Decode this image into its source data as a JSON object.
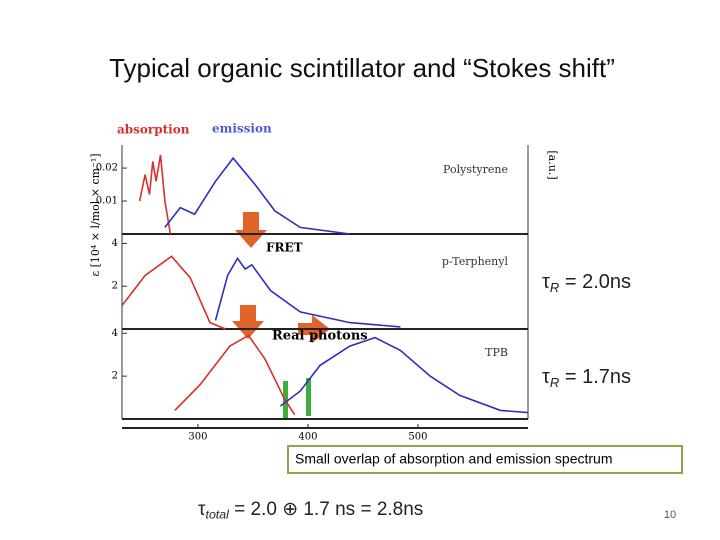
{
  "header": {
    "title": "Typical organic scintillator and “Stokes shift”"
  },
  "chart_data": {
    "type": "line",
    "legend": [
      "absorption",
      "emission"
    ],
    "y_label": "ε [10⁴ × l/mol × cm⁻¹]",
    "y2_label": "[a.u.]",
    "xlim": [
      231,
      600
    ],
    "xticks": [
      300,
      400,
      500
    ],
    "panels": [
      {
        "label": "Polystyrene",
        "ylim": [
          0,
          0.027
        ],
        "yticks": [
          0.02,
          0.01
        ],
        "series": [
          {
            "name": "absorption",
            "color": "#d8302a",
            "x": [
              247,
              252,
              256,
              259,
              262,
              266,
              270,
              275
            ],
            "values": [
              0.01,
              0.018,
              0.012,
              0.022,
              0.016,
              0.024,
              0.01,
              0.0
            ]
          },
          {
            "name": "emission",
            "color": "#2c2fc0",
            "x": [
              270,
              284,
              297,
              316,
              332,
              352,
              370,
              393,
              438
            ],
            "values": [
              0.002,
              0.008,
              0.006,
              0.016,
              0.023,
              0.015,
              0.007,
              0.002,
              0.0
            ]
          }
        ]
      },
      {
        "label": "p-Terphenyl",
        "ylim": [
          0,
          4.3
        ],
        "yticks": [
          4,
          2
        ],
        "series": [
          {
            "name": "absorption",
            "color": "#d8302a",
            "x": [
              231,
              252,
              276,
              293,
              311,
              325
            ],
            "values": [
              1.1,
              2.5,
              3.4,
              2.4,
              0.3,
              0.0
            ]
          },
          {
            "name": "emission",
            "color": "#2c2fc0",
            "x": [
              316,
              327,
              336,
              343,
              349,
              366,
              393,
              438,
              484
            ],
            "values": [
              0.4,
              2.5,
              3.3,
              2.8,
              3.0,
              1.8,
              0.8,
              0.3,
              0.1
            ]
          }
        ]
      },
      {
        "label": "TPB",
        "ylim": [
          0,
          4.2
        ],
        "yticks": [
          4,
          2
        ],
        "series": [
          {
            "name": "absorption",
            "color": "#d8302a",
            "x": [
              279,
              302,
              329,
              346,
              361,
              379,
              388
            ],
            "values": [
              0.4,
              1.6,
              3.4,
              3.9,
              2.8,
              0.9,
              0.2
            ]
          },
          {
            "name": "emission",
            "color": "#2c2fc0",
            "x": [
              375,
              393,
              411,
              438,
              461,
              484,
              511,
              538,
              575,
              600
            ],
            "values": [
              0.6,
              1.3,
              2.5,
              3.4,
              3.8,
              3.2,
              2.0,
              1.1,
              0.4,
              0.3
            ]
          }
        ]
      }
    ],
    "annotations": [
      "FRET",
      "Real photons"
    ]
  },
  "tau": [
    {
      "symbol": "τ",
      "sub": "R",
      "text": "= 2.0ns"
    },
    {
      "symbol": "τ",
      "sub": "R",
      "text": "= 1.7ns"
    }
  ],
  "note": "Small overlap of absorption and emission spectrum",
  "formula": {
    "symbol": "τ",
    "sub": "total",
    "text": "= 2.0 ⊕ 1.7 ns = 2.8ns"
  },
  "page_number": "10"
}
